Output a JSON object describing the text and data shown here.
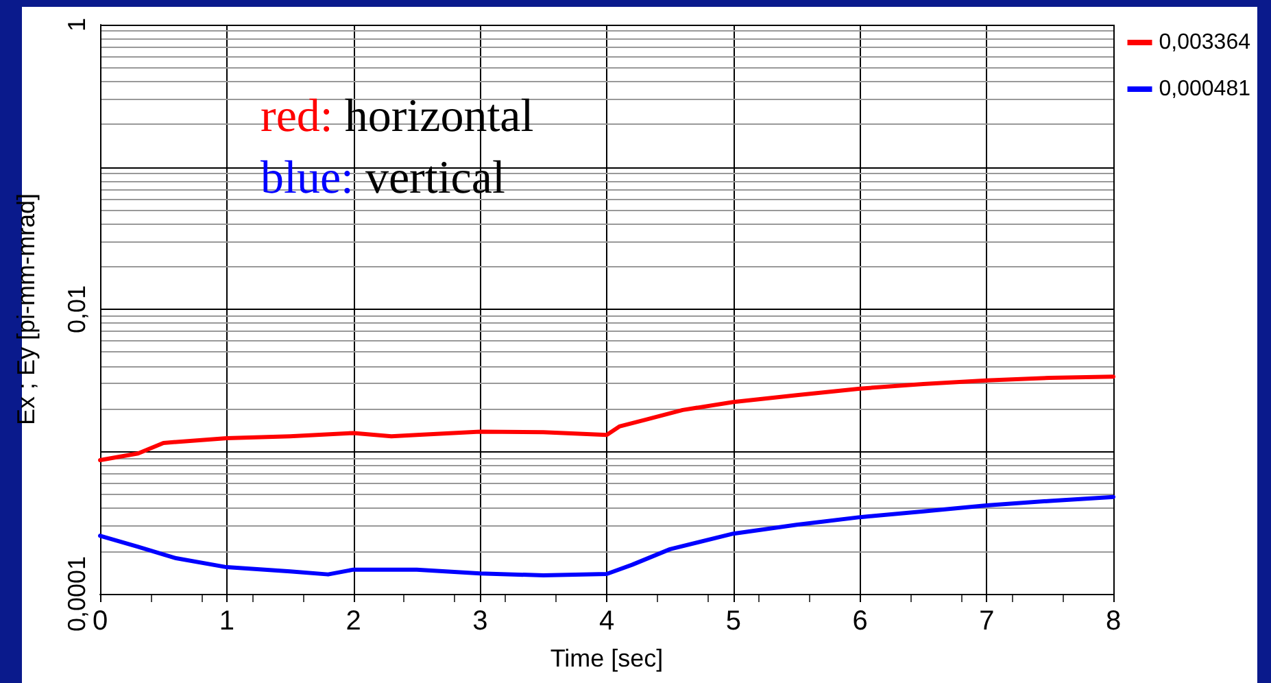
{
  "chart_data": {
    "type": "line",
    "xlabel": "Time [sec]",
    "ylabel": "Ex ; Ey [pi-mm-mrad]",
    "annotations": [
      "red: horizontal",
      "blue: vertical"
    ],
    "log": "y",
    "grid": true,
    "legend": "top right",
    "marker": "none",
    "line_style": "solid",
    "xlim": [
      0,
      8
    ],
    "xticks": [
      0,
      1,
      2,
      3,
      4,
      5,
      6,
      7,
      8
    ],
    "ylim": [
      0.0001,
      1
    ],
    "yticks": [
      {
        "value": 0.0001,
        "label": "0,0001"
      },
      {
        "value": 0.001,
        "label": null
      },
      {
        "value": 0.01,
        "label": "0,01"
      },
      {
        "value": 0.1,
        "label": null
      },
      1
    ],
    "series": [
      {
        "name": "0,003364",
        "color": "#ff0000",
        "x": [
          0,
          0.3,
          0.5,
          1,
          1.5,
          2,
          2.3,
          2.5,
          3,
          3.5,
          4,
          4.1,
          4.3,
          4.6,
          5,
          5.5,
          6,
          6.5,
          7,
          7.5,
          8
        ],
        "values": [
          0.00087,
          0.00097,
          0.00115,
          0.00124,
          0.00128,
          0.00135,
          0.00128,
          0.00131,
          0.00138,
          0.00137,
          0.00131,
          0.0015,
          0.00167,
          0.00196,
          0.00223,
          0.00249,
          0.00277,
          0.00298,
          0.00316,
          0.0033,
          0.00336
        ]
      },
      {
        "name": "0,000481",
        "color": "#0000ff",
        "x": [
          0,
          0.3,
          0.6,
          1,
          1.5,
          1.8,
          2,
          2.5,
          3,
          3.5,
          4,
          4.2,
          4.5,
          5,
          5.5,
          6,
          6.5,
          7,
          7.5,
          8
        ],
        "values": [
          0.000256,
          0.000214,
          0.000178,
          0.000154,
          0.000144,
          0.000137,
          0.000148,
          0.000148,
          0.000139,
          0.000135,
          0.000138,
          0.00016,
          0.000206,
          0.000265,
          0.000306,
          0.000346,
          0.00038,
          0.000418,
          0.00045,
          0.00048
        ]
      }
    ]
  }
}
